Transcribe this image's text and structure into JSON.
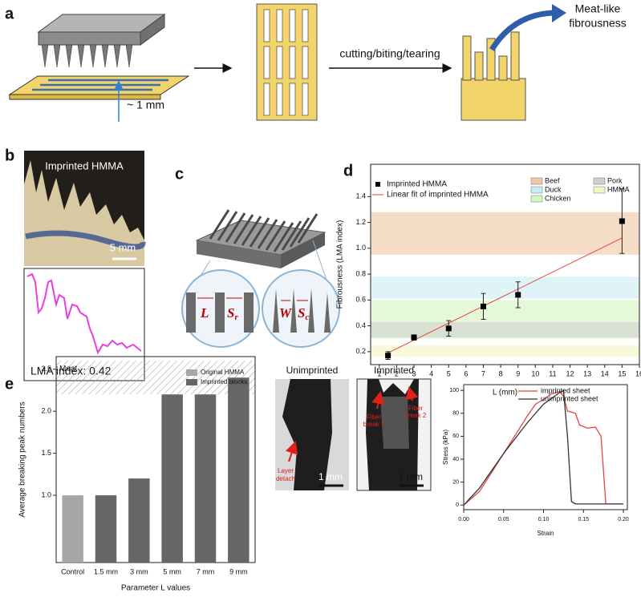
{
  "figure": {
    "panel_labels": [
      "a",
      "b",
      "c",
      "d",
      "e"
    ],
    "a": {
      "gap": "~ 1 mm",
      "action": "cutting/biting/tearing",
      "result": [
        "Meat-like",
        "fibrousness"
      ]
    },
    "b": {
      "title": "Imprinted HMMA",
      "scale": "5 mm",
      "index": "LMA index: 0.42"
    },
    "c": {
      "l": "L",
      "sr": {
        "symbol": "S",
        "sub": "r"
      },
      "w": "W",
      "sc": {
        "symbol": "S",
        "sub": "c"
      }
    },
    "e": {
      "unimprinted": "Unimprinted",
      "imprinted": "Imprinted",
      "layer": [
        "Layer",
        "detach"
      ],
      "fiber1": [
        "Fiber",
        "break 1"
      ],
      "fiber2": [
        "Fiber",
        "break 2"
      ],
      "scale": "1 mm"
    }
  },
  "chart_data": [
    {
      "type": "scatter",
      "name": "Imprinted HMMA",
      "color": "#000000",
      "x": [
        1.5,
        3,
        5,
        7,
        9,
        15
      ],
      "values": [
        0.17,
        0.31,
        0.38,
        0.55,
        0.64,
        1.21
      ],
      "errors": [
        0.03,
        0.02,
        0.06,
        0.1,
        0.1,
        0.25
      ],
      "fit": {
        "name": "Linear fit of imprinted HMMA",
        "color": "#e8433f",
        "x": [
          1.5,
          15
        ],
        "values": [
          0.19,
          1.08
        ]
      },
      "bands": [
        {
          "name": "Beef",
          "color": "#f0c6a4",
          "range": [
            0.95,
            1.28
          ]
        },
        {
          "name": "Duck",
          "color": "#c8edf0",
          "range": [
            0.61,
            0.78
          ]
        },
        {
          "name": "Chicken",
          "color": "#d3f5c0",
          "range": [
            0.3,
            0.6
          ]
        },
        {
          "name": "Pork",
          "color": "#cfcfcf",
          "range": [
            0.31,
            0.43
          ]
        },
        {
          "name": "HMMA",
          "color": "#f2f5c2",
          "range": [
            0.16,
            0.25
          ]
        }
      ],
      "xlabel": "L (mm)",
      "ylabel": "Fibrousness (LMA index)",
      "xlim": [
        0.5,
        16
      ],
      "ylim": [
        0.1,
        1.65
      ],
      "xticks": [
        1,
        2,
        3,
        4,
        5,
        6,
        7,
        8,
        9,
        10,
        11,
        12,
        13,
        14,
        15,
        16
      ],
      "yticks": [
        0.2,
        0.4,
        0.6,
        0.8,
        {
          "value": 1,
          "label": "1.0"
        },
        1.2,
        1.4
      ]
    },
    {
      "type": "bar",
      "categories": [
        "Control",
        "1.5 mm",
        "3 mm",
        "5 mm",
        "7 mm",
        "9 mm"
      ],
      "series": [
        {
          "name": "Original HMMA",
          "color": "#a6a6a6",
          "values": [
            1,
            null,
            null,
            null,
            null,
            null
          ]
        },
        {
          "name": "Imprinted blocks",
          "color": "#666666",
          "values": [
            null,
            1,
            1.2,
            2.2,
            2.2,
            2.4
          ]
        }
      ],
      "band": {
        "label": "Meat",
        "range": [
          2.2,
          2.6
        ]
      },
      "xlabel": "Parameter L values",
      "ylabel": "Average breaking peak numbers",
      "ylim": [
        0.2,
        2.65
      ],
      "yticks": [
        {
          "value": 1,
          "label": "1.0"
        },
        1.5,
        {
          "value": 2,
          "label": "2.0"
        },
        2.5
      ]
    },
    {
      "type": "line",
      "series": [
        {
          "name": "imprinted sheet",
          "color": "#e8433f",
          "x": [
            0,
            0.02,
            0.05,
            0.08,
            0.09,
            0.1,
            0.11,
            0.12,
            0.125,
            0.13,
            0.14,
            0.145,
            0.155,
            0.165,
            0.172,
            0.178,
            0.2
          ],
          "values": [
            0,
            12,
            45,
            78,
            88,
            92,
            97,
            99,
            95,
            82,
            80,
            70,
            67,
            68,
            60,
            1,
            1
          ]
        },
        {
          "name": "unimprinted sheet",
          "color": "#333333",
          "x": [
            0,
            0.02,
            0.05,
            0.08,
            0.1,
            0.12,
            0.125,
            0.13,
            0.135,
            0.14,
            0.2
          ],
          "values": [
            0,
            15,
            45,
            72,
            88,
            98,
            100,
            60,
            3,
            1,
            1
          ]
        }
      ],
      "xlabel": "Strain",
      "ylabel": "Stress (kPa)",
      "xlim": [
        0,
        0.205
      ],
      "ylim": [
        -4,
        105
      ],
      "xticks": [
        {
          "value": 0,
          "label": "0.00"
        },
        {
          "value": 0.05,
          "label": "0.05"
        },
        {
          "value": 0.1,
          "label": "0.10"
        },
        {
          "value": 0.15,
          "label": "0.15"
        },
        {
          "value": 0.2,
          "label": "0.20"
        }
      ],
      "yticks": [
        0,
        20,
        40,
        60,
        80,
        100
      ]
    }
  ]
}
